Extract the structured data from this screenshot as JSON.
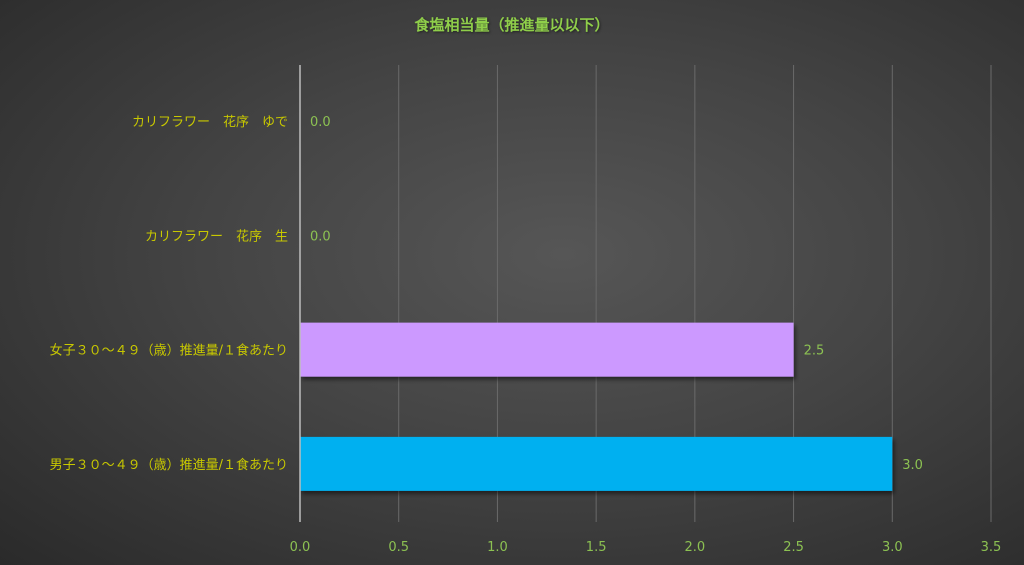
{
  "chart_data": {
    "type": "bar",
    "orientation": "horizontal",
    "title": "食塩相当量（推進量以以下）",
    "categories": [
      "カリフラワー　花序　ゆで",
      "カリフラワー　花序　生",
      "女子３０～４９（歳）推進量/１食あたり",
      "男子３０～４９（歳）推進量/１食あたり"
    ],
    "values": [
      0.0,
      0.0,
      2.5,
      3.0
    ],
    "data_labels": [
      "0.0",
      "0.0",
      "2.5",
      "3.0"
    ],
    "bar_colors": [
      "#00b0f0",
      "#00b0f0",
      "#cc99ff",
      "#00b0f0"
    ],
    "xlim": [
      0,
      3.5
    ],
    "xticks": [
      "0.0",
      "0.5",
      "1.0",
      "1.5",
      "2.0",
      "2.5",
      "3.0",
      "3.5"
    ],
    "grid": true,
    "colors": {
      "title": "#8fce4a",
      "category_labels": "#c8c800",
      "values": "#8cc152",
      "gridlines": "#6a6a6a"
    }
  }
}
